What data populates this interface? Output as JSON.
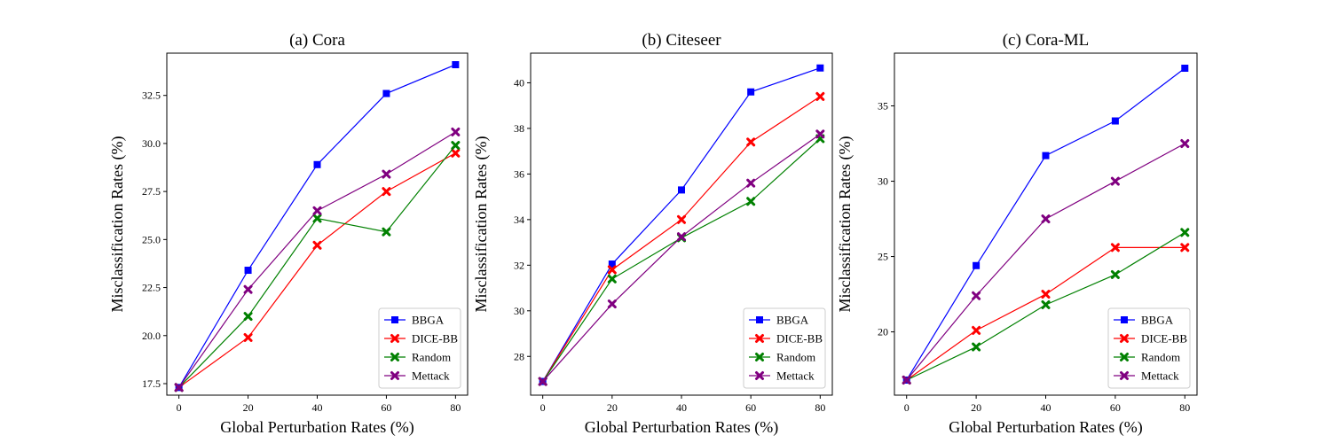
{
  "colors": {
    "BBGA": "#0000ff",
    "DICE-BB": "#ff0000",
    "Random": "#008000",
    "Mettack": "#800080"
  },
  "chart_data": [
    {
      "type": "line",
      "title": "(a) Cora",
      "xlabel": "Global Perturbation Rates (%)",
      "ylabel": "Misclassification Rates (%)",
      "x": [
        0,
        20,
        40,
        60,
        80
      ],
      "xticks": [
        "0",
        "20",
        "40",
        "60",
        "80"
      ],
      "xlim": [
        -3.5,
        83.5
      ],
      "ylim": [
        16.9,
        34.7
      ],
      "yticks": [
        "17.5",
        "20.0",
        "22.5",
        "25.0",
        "27.5",
        "30.0",
        "32.5"
      ],
      "legend_position": "lower-right",
      "series": [
        {
          "name": "BBGA",
          "marker": "square",
          "values": [
            17.3,
            23.4,
            28.9,
            32.6,
            34.1
          ]
        },
        {
          "name": "DICE-BB",
          "marker": "x",
          "values": [
            17.3,
            19.9,
            24.7,
            27.5,
            29.5
          ]
        },
        {
          "name": "Random",
          "marker": "x",
          "values": [
            17.3,
            21.0,
            26.1,
            25.4,
            29.9
          ]
        },
        {
          "name": "Mettack",
          "marker": "x",
          "values": [
            17.3,
            22.4,
            26.5,
            28.4,
            30.6
          ]
        }
      ]
    },
    {
      "type": "line",
      "title": "(b) Citeseer",
      "xlabel": "Global Perturbation Rates (%)",
      "ylabel": "Misclassification Rates (%)",
      "x": [
        0,
        20,
        40,
        60,
        80
      ],
      "xticks": [
        "0",
        "20",
        "40",
        "60",
        "80"
      ],
      "xlim": [
        -3.5,
        83.5
      ],
      "ylim": [
        26.3,
        41.3
      ],
      "yticks": [
        "28",
        "30",
        "32",
        "34",
        "36",
        "38",
        "40"
      ],
      "legend_position": "lower-right",
      "series": [
        {
          "name": "BBGA",
          "marker": "square",
          "values": [
            26.9,
            32.05,
            35.3,
            39.6,
            40.65
          ]
        },
        {
          "name": "DICE-BB",
          "marker": "x",
          "values": [
            26.9,
            31.8,
            34.0,
            37.4,
            39.4
          ]
        },
        {
          "name": "Random",
          "marker": "x",
          "values": [
            26.9,
            31.4,
            33.2,
            34.8,
            37.55
          ]
        },
        {
          "name": "Mettack",
          "marker": "x",
          "values": [
            26.9,
            30.3,
            33.25,
            35.6,
            37.75
          ]
        }
      ]
    },
    {
      "type": "line",
      "title": "(c) Cora-ML",
      "xlabel": "Global Perturbation Rates (%)",
      "ylabel": "Misclassification Rates (%)",
      "x": [
        0,
        20,
        40,
        60,
        80
      ],
      "xticks": [
        "0",
        "20",
        "40",
        "60",
        "80"
      ],
      "xlim": [
        -3.5,
        83.5
      ],
      "ylim": [
        15.8,
        38.5
      ],
      "yticks": [
        "20",
        "25",
        "30",
        "35"
      ],
      "legend_position": "lower-right",
      "series": [
        {
          "name": "BBGA",
          "marker": "square",
          "values": [
            16.8,
            24.4,
            31.7,
            34.0,
            37.5
          ]
        },
        {
          "name": "DICE-BB",
          "marker": "x",
          "values": [
            16.8,
            20.1,
            22.5,
            25.6,
            25.6
          ]
        },
        {
          "name": "Random",
          "marker": "x",
          "values": [
            16.8,
            19.0,
            21.8,
            23.8,
            26.6
          ]
        },
        {
          "name": "Mettack",
          "marker": "x",
          "values": [
            16.8,
            22.4,
            27.5,
            30.0,
            32.5
          ]
        }
      ]
    }
  ]
}
